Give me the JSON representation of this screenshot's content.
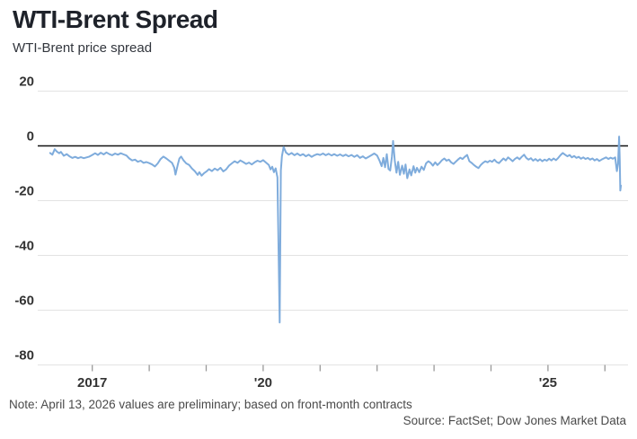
{
  "chart_data": {
    "type": "line",
    "title": "WTI-Brent Spread",
    "subtitle": "WTI-Brent price spread",
    "note": "Note: April 13, 2026 values are preliminary; based on front-month contracts",
    "source": "Source: FactSet; Dow Jones Market Data",
    "ylabel": "",
    "xlabel": "",
    "ylim": [
      -80,
      20
    ],
    "xlim": [
      2016.24,
      2026.32
    ],
    "grid": "horizontal",
    "legend": "none",
    "baseline": 0,
    "colors": {
      "line": "#7facdc",
      "zero_line": "#111111",
      "gridline": "#e3e3e3",
      "tick": "#999999",
      "axis_text": "#333333"
    },
    "y_axis": {
      "ticks": [
        20,
        0,
        -20,
        -40,
        -60,
        -80
      ],
      "tick_labels": [
        "20",
        "0",
        "-20",
        "-40",
        "-60",
        "-80"
      ]
    },
    "x_axis": {
      "tick_years": [
        2017,
        2018,
        2019,
        2020,
        2021,
        2022,
        2023,
        2024,
        2025,
        2026
      ],
      "tick_labels": [
        {
          "year": 2017,
          "label": "2017"
        },
        {
          "year": 2020,
          "label": "'20"
        },
        {
          "year": 2025,
          "label": "'25"
        }
      ]
    },
    "series": [
      {
        "name": "WTI-Brent price spread",
        "color": "#7facdc",
        "points": [
          [
            2016.26,
            -2.6
          ],
          [
            2016.3,
            -3.2
          ],
          [
            2016.34,
            -1.2
          ],
          [
            2016.38,
            -2.1
          ],
          [
            2016.42,
            -2.7
          ],
          [
            2016.45,
            -2.2
          ],
          [
            2016.5,
            -3.6
          ],
          [
            2016.55,
            -3.0
          ],
          [
            2016.6,
            -3.8
          ],
          [
            2016.65,
            -4.4
          ],
          [
            2016.7,
            -4.0
          ],
          [
            2016.75,
            -4.5
          ],
          [
            2016.8,
            -4.1
          ],
          [
            2016.85,
            -4.5
          ],
          [
            2016.9,
            -4.2
          ],
          [
            2016.95,
            -3.9
          ],
          [
            2017.0,
            -3.3
          ],
          [
            2017.05,
            -2.7
          ],
          [
            2017.1,
            -3.3
          ],
          [
            2017.15,
            -2.5
          ],
          [
            2017.2,
            -3.1
          ],
          [
            2017.25,
            -2.4
          ],
          [
            2017.3,
            -3.0
          ],
          [
            2017.35,
            -3.4
          ],
          [
            2017.4,
            -2.8
          ],
          [
            2017.45,
            -3.2
          ],
          [
            2017.5,
            -2.7
          ],
          [
            2017.55,
            -3.1
          ],
          [
            2017.6,
            -3.5
          ],
          [
            2017.65,
            -4.6
          ],
          [
            2017.7,
            -5.3
          ],
          [
            2017.75,
            -5.0
          ],
          [
            2017.8,
            -5.8
          ],
          [
            2017.85,
            -5.4
          ],
          [
            2017.9,
            -6.2
          ],
          [
            2017.95,
            -5.9
          ],
          [
            2018.0,
            -6.3
          ],
          [
            2018.05,
            -6.8
          ],
          [
            2018.1,
            -7.5
          ],
          [
            2018.15,
            -6.4
          ],
          [
            2018.2,
            -4.8
          ],
          [
            2018.25,
            -3.9
          ],
          [
            2018.3,
            -4.6
          ],
          [
            2018.35,
            -5.4
          ],
          [
            2018.4,
            -6.2
          ],
          [
            2018.44,
            -8.0
          ],
          [
            2018.46,
            -10.5
          ],
          [
            2018.5,
            -7.0
          ],
          [
            2018.53,
            -4.6
          ],
          [
            2018.56,
            -3.9
          ],
          [
            2018.6,
            -5.2
          ],
          [
            2018.65,
            -6.4
          ],
          [
            2018.7,
            -7.0
          ],
          [
            2018.75,
            -8.3
          ],
          [
            2018.8,
            -9.2
          ],
          [
            2018.85,
            -10.6
          ],
          [
            2018.88,
            -9.6
          ],
          [
            2018.92,
            -10.9
          ],
          [
            2018.96,
            -10.0
          ],
          [
            2019.0,
            -9.4
          ],
          [
            2019.05,
            -8.5
          ],
          [
            2019.1,
            -9.2
          ],
          [
            2019.15,
            -8.3
          ],
          [
            2019.2,
            -8.9
          ],
          [
            2019.25,
            -8.0
          ],
          [
            2019.3,
            -9.3
          ],
          [
            2019.35,
            -8.6
          ],
          [
            2019.4,
            -7.2
          ],
          [
            2019.45,
            -6.4
          ],
          [
            2019.5,
            -5.6
          ],
          [
            2019.55,
            -6.2
          ],
          [
            2019.6,
            -5.3
          ],
          [
            2019.65,
            -5.9
          ],
          [
            2019.7,
            -6.6
          ],
          [
            2019.75,
            -6.1
          ],
          [
            2019.8,
            -6.8
          ],
          [
            2019.85,
            -6.0
          ],
          [
            2019.9,
            -5.4
          ],
          [
            2019.95,
            -5.8
          ],
          [
            2020.0,
            -5.2
          ],
          [
            2020.05,
            -6.1
          ],
          [
            2020.1,
            -7.0
          ],
          [
            2020.13,
            -8.6
          ],
          [
            2020.16,
            -7.6
          ],
          [
            2020.19,
            -9.6
          ],
          [
            2020.22,
            -8.2
          ],
          [
            2020.25,
            -11.5
          ],
          [
            2020.29,
            -64.5
          ],
          [
            2020.31,
            -9.0
          ],
          [
            2020.33,
            -3.8
          ],
          [
            2020.36,
            -0.4
          ],
          [
            2020.4,
            -2.4
          ],
          [
            2020.45,
            -3.2
          ],
          [
            2020.5,
            -2.6
          ],
          [
            2020.55,
            -3.4
          ],
          [
            2020.6,
            -2.8
          ],
          [
            2020.65,
            -3.5
          ],
          [
            2020.7,
            -3.0
          ],
          [
            2020.75,
            -3.8
          ],
          [
            2020.8,
            -3.2
          ],
          [
            2020.85,
            -4.0
          ],
          [
            2020.9,
            -3.4
          ],
          [
            2020.95,
            -3.0
          ],
          [
            2021.0,
            -3.3
          ],
          [
            2021.05,
            -2.8
          ],
          [
            2021.1,
            -3.4
          ],
          [
            2021.15,
            -2.9
          ],
          [
            2021.2,
            -3.5
          ],
          [
            2021.25,
            -3.0
          ],
          [
            2021.3,
            -3.6
          ],
          [
            2021.35,
            -3.1
          ],
          [
            2021.4,
            -3.7
          ],
          [
            2021.45,
            -3.2
          ],
          [
            2021.5,
            -3.8
          ],
          [
            2021.55,
            -3.3
          ],
          [
            2021.6,
            -4.0
          ],
          [
            2021.65,
            -3.4
          ],
          [
            2021.7,
            -4.4
          ],
          [
            2021.75,
            -3.8
          ],
          [
            2021.8,
            -4.6
          ],
          [
            2021.85,
            -4.0
          ],
          [
            2021.9,
            -3.4
          ],
          [
            2021.95,
            -2.8
          ],
          [
            2022.0,
            -3.5
          ],
          [
            2022.04,
            -5.2
          ],
          [
            2022.08,
            -7.4
          ],
          [
            2022.11,
            -4.4
          ],
          [
            2022.14,
            -7.8
          ],
          [
            2022.17,
            -3.0
          ],
          [
            2022.2,
            -8.4
          ],
          [
            2022.23,
            -9.0
          ],
          [
            2022.26,
            -4.0
          ],
          [
            2022.28,
            1.8
          ],
          [
            2022.31,
            -5.4
          ],
          [
            2022.34,
            -9.8
          ],
          [
            2022.37,
            -5.8
          ],
          [
            2022.4,
            -10.6
          ],
          [
            2022.44,
            -7.2
          ],
          [
            2022.47,
            -10.2
          ],
          [
            2022.5,
            -6.8
          ],
          [
            2022.53,
            -11.8
          ],
          [
            2022.57,
            -8.6
          ],
          [
            2022.6,
            -10.8
          ],
          [
            2022.64,
            -7.4
          ],
          [
            2022.67,
            -9.8
          ],
          [
            2022.7,
            -8.0
          ],
          [
            2022.74,
            -9.6
          ],
          [
            2022.78,
            -7.6
          ],
          [
            2022.82,
            -8.8
          ],
          [
            2022.86,
            -6.4
          ],
          [
            2022.9,
            -5.6
          ],
          [
            2022.94,
            -6.2
          ],
          [
            2022.98,
            -7.2
          ],
          [
            2023.02,
            -6.0
          ],
          [
            2023.06,
            -7.0
          ],
          [
            2023.1,
            -6.2
          ],
          [
            2023.14,
            -5.2
          ],
          [
            2023.18,
            -4.6
          ],
          [
            2023.22,
            -5.4
          ],
          [
            2023.26,
            -5.0
          ],
          [
            2023.3,
            -6.0
          ],
          [
            2023.34,
            -6.6
          ],
          [
            2023.38,
            -5.8
          ],
          [
            2023.42,
            -5.0
          ],
          [
            2023.46,
            -4.3
          ],
          [
            2023.5,
            -4.8
          ],
          [
            2023.54,
            -4.0
          ],
          [
            2023.58,
            -3.3
          ],
          [
            2023.62,
            -5.6
          ],
          [
            2023.66,
            -6.2
          ],
          [
            2023.7,
            -7.0
          ],
          [
            2023.74,
            -7.6
          ],
          [
            2023.78,
            -8.1
          ],
          [
            2023.82,
            -7.0
          ],
          [
            2023.86,
            -6.2
          ],
          [
            2023.9,
            -5.6
          ],
          [
            2023.94,
            -6.0
          ],
          [
            2023.98,
            -5.4
          ],
          [
            2024.02,
            -5.8
          ],
          [
            2024.06,
            -5.0
          ],
          [
            2024.1,
            -5.9
          ],
          [
            2024.14,
            -6.3
          ],
          [
            2024.18,
            -5.4
          ],
          [
            2024.22,
            -4.6
          ],
          [
            2024.26,
            -5.3
          ],
          [
            2024.3,
            -4.2
          ],
          [
            2024.34,
            -4.9
          ],
          [
            2024.38,
            -5.6
          ],
          [
            2024.42,
            -4.8
          ],
          [
            2024.46,
            -4.2
          ],
          [
            2024.5,
            -4.9
          ],
          [
            2024.54,
            -4.0
          ],
          [
            2024.58,
            -3.2
          ],
          [
            2024.62,
            -4.4
          ],
          [
            2024.66,
            -5.0
          ],
          [
            2024.7,
            -4.5
          ],
          [
            2024.74,
            -5.4
          ],
          [
            2024.78,
            -4.8
          ],
          [
            2024.82,
            -5.5
          ],
          [
            2024.86,
            -4.9
          ],
          [
            2024.9,
            -5.6
          ],
          [
            2024.94,
            -5.0
          ],
          [
            2024.98,
            -5.4
          ],
          [
            2025.02,
            -4.7
          ],
          [
            2025.06,
            -5.3
          ],
          [
            2025.1,
            -4.6
          ],
          [
            2025.14,
            -5.2
          ],
          [
            2025.18,
            -4.4
          ],
          [
            2025.22,
            -3.4
          ],
          [
            2025.26,
            -2.6
          ],
          [
            2025.3,
            -3.2
          ],
          [
            2025.34,
            -3.8
          ],
          [
            2025.38,
            -3.3
          ],
          [
            2025.42,
            -4.2
          ],
          [
            2025.46,
            -3.7
          ],
          [
            2025.5,
            -4.4
          ],
          [
            2025.54,
            -4.0
          ],
          [
            2025.58,
            -4.7
          ],
          [
            2025.62,
            -4.2
          ],
          [
            2025.66,
            -4.8
          ],
          [
            2025.7,
            -4.4
          ],
          [
            2025.74,
            -5.0
          ],
          [
            2025.78,
            -4.6
          ],
          [
            2025.82,
            -5.3
          ],
          [
            2025.86,
            -4.8
          ],
          [
            2025.9,
            -5.5
          ],
          [
            2025.94,
            -5.0
          ],
          [
            2025.98,
            -4.6
          ],
          [
            2026.02,
            -4.2
          ],
          [
            2026.06,
            -4.8
          ],
          [
            2026.1,
            -4.3
          ],
          [
            2026.14,
            -4.7
          ],
          [
            2026.18,
            -4.2
          ],
          [
            2026.21,
            -9.2
          ],
          [
            2026.23,
            -6.5
          ],
          [
            2026.25,
            3.4
          ],
          [
            2026.26,
            -5.0
          ],
          [
            2026.27,
            -16.3
          ],
          [
            2026.28,
            -14.5
          ]
        ]
      }
    ]
  }
}
